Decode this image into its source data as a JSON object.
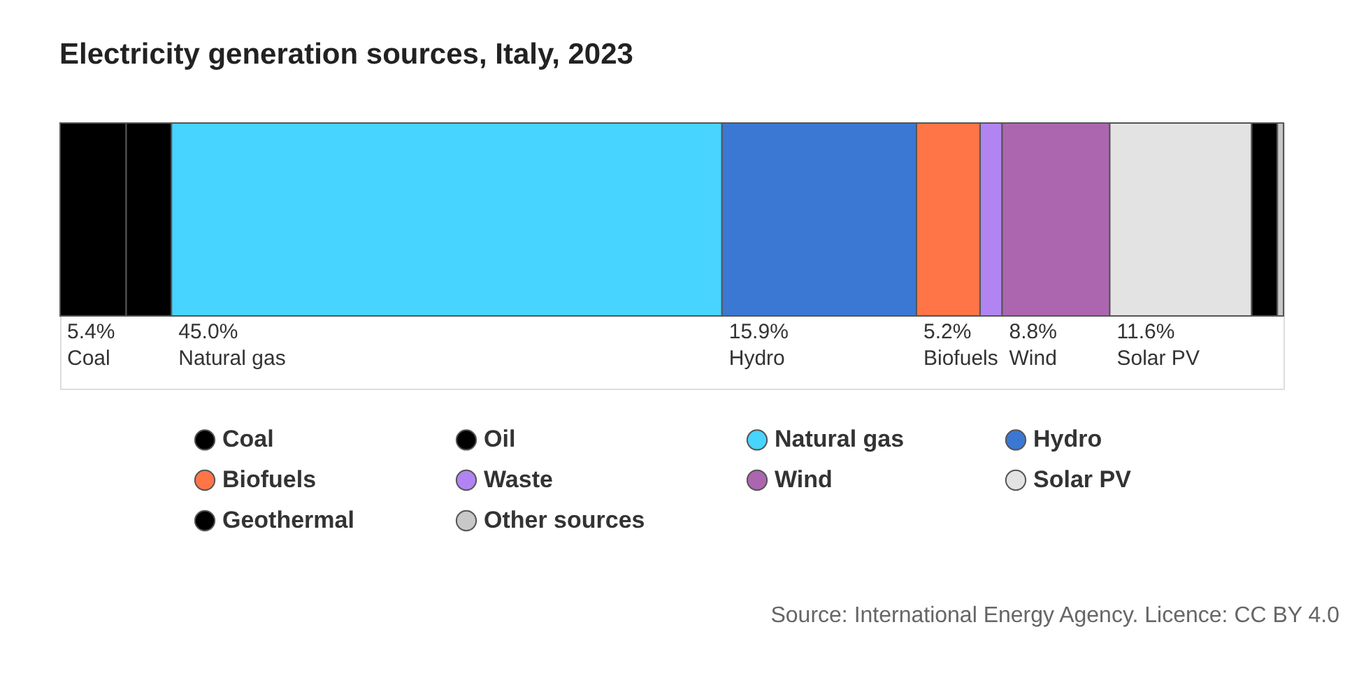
{
  "chart_data": {
    "type": "bar",
    "title": "Electricity generation sources, Italy, 2023",
    "orientation": "horizontal",
    "stacked": true,
    "categories": [
      null
    ],
    "legend": "bottom",
    "series": [
      {
        "name": "Coal",
        "color": "#000000",
        "values": [
          5.4
        ],
        "value_labels": [
          "5.4%"
        ]
      },
      {
        "name": "Oil",
        "color": "#000000",
        "values": [
          3.7
        ],
        "value_labels": [
          null
        ]
      },
      {
        "name": "Natural gas",
        "color": "#47d4ff",
        "values": [
          45.0
        ],
        "value_labels": [
          "45.0%"
        ]
      },
      {
        "name": "Hydro",
        "color": "#3b78d4",
        "values": [
          15.9
        ],
        "value_labels": [
          "15.9%"
        ]
      },
      {
        "name": "Biofuels",
        "color": "#ff7548",
        "values": [
          5.2
        ],
        "value_labels": [
          "5.2%"
        ]
      },
      {
        "name": "Waste",
        "color": "#b284f2",
        "values": [
          1.8
        ],
        "value_labels": [
          null
        ]
      },
      {
        "name": "Wind",
        "color": "#ac66b0",
        "values": [
          8.8
        ],
        "value_labels": [
          "8.8%"
        ]
      },
      {
        "name": "Solar PV",
        "color": "#e3e3e3",
        "values": [
          11.6
        ],
        "value_labels": [
          "11.6%"
        ]
      },
      {
        "name": "Geothermal",
        "color": "#000000",
        "values": [
          2.1
        ],
        "value_labels": [
          null
        ]
      },
      {
        "name": "Other sources",
        "color": "#c8c8c8",
        "values": [
          0.5
        ],
        "value_labels": [
          null
        ]
      }
    ],
    "annotations": [
      "Source: International Energy Agency. Licence: CC BY 4.0"
    ]
  }
}
